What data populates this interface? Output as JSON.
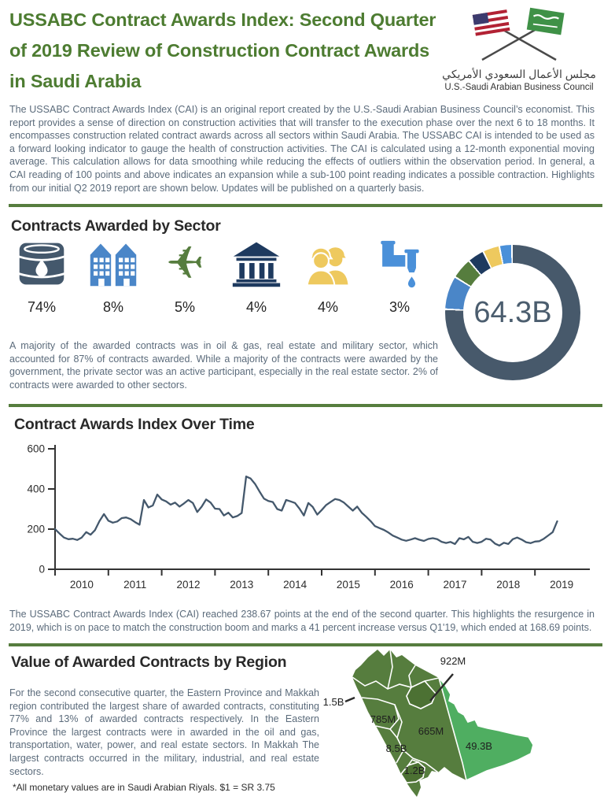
{
  "header": {
    "title": "USSABC Contract Awards Index: Second Quarter of 2019 Review of Construction Contract Awards in Saudi Arabia",
    "logo": {
      "arabic": "مجلس الأعمال السعودي الأمريكي",
      "english": "U.S.-Saudi Arabian Business Council"
    }
  },
  "intro": "The USSABC Contract Awards Index (CAI) is an original report created by the U.S.-Saudi Arabian Business Council’s economist. This report provides a sense of direction on construction activities that will transfer to the execution phase over the next 6 to 18 months. It encompasses construction related contract awards across all sectors within Saudi Arabia. The USSABC CAI is intended to be used as a forward looking indicator to gauge the health of construction activities. The CAI is calculated using a 12-month exponential moving average. This calculation allows for data smoothing while reducing the effects of outliers within the observation period. In general, a CAI reading of 100 points and above indicates an expansion while a sub-100 point reading indicates a possible contraction. Highlights from our initial Q2 2019 report are shown below. Updates will be published on a quarterly basis.",
  "sector_section": {
    "heading": "Contracts Awarded by Sector",
    "sectors": [
      {
        "icon": "oil-barrel-icon",
        "label": "Oil & Gas",
        "value": "74%",
        "color": "#44586c"
      },
      {
        "icon": "buildings-icon",
        "label": "Real Estate",
        "value": "8%",
        "color": "#4a86c8"
      },
      {
        "icon": "fighter-jet-icon",
        "label": "Military",
        "value": "5%",
        "color": "#567d3e"
      },
      {
        "icon": "government-building-icon",
        "label": "Government",
        "value": "4%",
        "color": "#1e3a5f"
      },
      {
        "icon": "construction-workers-icon",
        "label": "Construction",
        "value": "4%",
        "color": "#eec95e"
      },
      {
        "icon": "water-pipe-icon",
        "label": "Water",
        "value": "3%",
        "color": "#4a90d9"
      }
    ],
    "donut": {
      "center_label": "64.3B",
      "segments": [
        {
          "color": "#47596b",
          "pct": 75.6
        },
        {
          "color": "#ffffff",
          "pct": 0.4
        },
        {
          "color": "#4a86c8",
          "pct": 7.6
        },
        {
          "color": "#ffffff",
          "pct": 0.4
        },
        {
          "color": "#567d3e",
          "pct": 4.6
        },
        {
          "color": "#ffffff",
          "pct": 0.4
        },
        {
          "color": "#1e3a5f",
          "pct": 3.6
        },
        {
          "color": "#ffffff",
          "pct": 0.4
        },
        {
          "color": "#eec95e",
          "pct": 3.6
        },
        {
          "color": "#ffffff",
          "pct": 0.4
        },
        {
          "color": "#4a90d9",
          "pct": 2.6
        },
        {
          "color": "#ffffff",
          "pct": 0.4
        }
      ]
    },
    "body": "A majority of the awarded contracts was in oil & gas, real estate and military sector, which accounted for 87% of contracts awarded. While a majority of the contracts were awarded by the government, the private sector was an active participant, especially in the real estate sector. 2% of contracts were awarded to other sectors."
  },
  "cai_section": {
    "heading": "Contract Awards Index Over Time",
    "body": "The USSABC Contract Awards Index (CAI) reached 238.67 points at the end of the second quarter. This highlights the resurgence in 2019, which is on pace to match the construction boom  and marks a 41 percent increase versus Q1'19, which ended at 168.69 points."
  },
  "region_section": {
    "heading": "Value of Awarded Contracts by Region",
    "body": "For the second consecutive quarter, the Eastern Province and Makkah region contributed the largest share of awarded contracts, constituting 77% and 13% of awarded contracts respectively. In the Eastern Province the largest contracts were in awarded in the oil and gas, transportation, water, power, and real estate sectors. In Makkah The largest contracts occurred in the military, industrial, and real estate sectors.",
    "footnote": "*All monetary  values are in Saudi Arabian Riyals.  $1 = SR 3.75",
    "map_labels": [
      {
        "region": "qassim",
        "text": "922M"
      },
      {
        "region": "tabuk-northwest",
        "text": "1.5B"
      },
      {
        "region": "madinah",
        "text": "785M"
      },
      {
        "region": "riyadh",
        "text": "665M"
      },
      {
        "region": "makkah",
        "text": "8.5B"
      },
      {
        "region": "asir",
        "text": "1.2B"
      },
      {
        "region": "eastern-province",
        "text": "49.3B"
      }
    ]
  },
  "chart_data": [
    {
      "type": "pie",
      "title": "Contracts Awarded by Sector",
      "center_label": "64.3B",
      "labels": [
        "Oil & Gas",
        "Real Estate",
        "Military",
        "Government",
        "Construction",
        "Water"
      ],
      "values": [
        74,
        8,
        5,
        4,
        4,
        3
      ],
      "colors": [
        "#47596b",
        "#4a86c8",
        "#567d3e",
        "#1e3a5f",
        "#eec95e",
        "#4a90d9"
      ],
      "note": "donut chart; remaining 2% (other sectors) drawn in the main ring color"
    },
    {
      "type": "line",
      "title": "Contract Awards Index Over Time",
      "x_labels": [
        "2010",
        "2011",
        "2012",
        "2013",
        "2014",
        "2015",
        "2016",
        "2017",
        "2018",
        "2019"
      ],
      "x_unit": "month",
      "ylim": [
        0,
        600
      ],
      "yticks": [
        0,
        200,
        400,
        600
      ],
      "line_color": "#44586c",
      "series": [
        {
          "name": "USSABC Contract Awards Index",
          "values": [
            200,
            178,
            158,
            150,
            152,
            146,
            158,
            185,
            172,
            195,
            240,
            275,
            242,
            232,
            238,
            255,
            258,
            250,
            235,
            222,
            345,
            308,
            318,
            372,
            348,
            338,
            322,
            332,
            312,
            328,
            345,
            330,
            285,
            312,
            348,
            332,
            302,
            300,
            268,
            282,
            258,
            265,
            280,
            462,
            452,
            425,
            388,
            352,
            340,
            335,
            300,
            292,
            345,
            338,
            330,
            302,
            268,
            330,
            310,
            272,
            295,
            320,
            335,
            350,
            345,
            332,
            312,
            292,
            312,
            282,
            262,
            240,
            215,
            205,
            196,
            183,
            168,
            158,
            148,
            142,
            148,
            155,
            147,
            141,
            151,
            155,
            150,
            137,
            131,
            136,
            126,
            155,
            149,
            161,
            137,
            131,
            137,
            152,
            148,
            128,
            118,
            132,
            126,
            150,
            158,
            148,
            135,
            130,
            138,
            140,
            152,
            168.69,
            185,
            238.67
          ]
        }
      ],
      "annotations": {
        "q1_2019_end": 168.69,
        "q2_2019_end": 238.67
      }
    }
  ],
  "theme": {
    "title_green": "#4d7c31",
    "divider_green": "#567d3e",
    "body_slate": "#5b6b7b",
    "heading_dark": "#292929",
    "map_dark_green": "#567d3e",
    "map_light_green": "#4fae61",
    "chart_line": "#44586c"
  }
}
